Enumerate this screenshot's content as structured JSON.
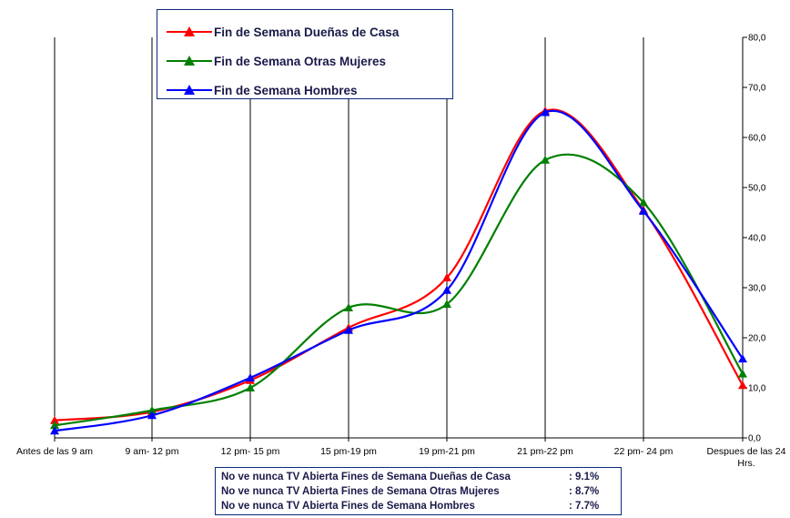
{
  "chart_data": {
    "type": "line",
    "categories": [
      "Antes de las 9 am",
      "9 am- 12 pm",
      "12 pm- 15 pm",
      "15 pm-19 pm",
      "19 pm-21 pm",
      "21 pm-22 pm",
      "22 pm- 24 pm",
      "Despues de las 24 Hrs."
    ],
    "series": [
      {
        "name": "Fin de Semana Dueñas de Casa",
        "color": "#ff0000",
        "values": [
          3.5,
          5.2,
          11.5,
          22.0,
          32.0,
          65.3,
          45.5,
          10.5
        ]
      },
      {
        "name": "Fin de Semana Otras Mujeres",
        "color": "#008000",
        "values": [
          2.5,
          5.5,
          10.0,
          26.0,
          26.7,
          55.5,
          47.0,
          12.8
        ]
      },
      {
        "name": "Fin de Semana Hombres",
        "color": "#0000ff",
        "values": [
          1.4,
          4.5,
          12.0,
          21.5,
          29.5,
          65.0,
          45.3,
          15.8
        ]
      }
    ],
    "ylim": [
      0,
      80
    ],
    "yticks": [
      "0,0",
      "10,0",
      "20,0",
      "30,0",
      "40,0",
      "50,0",
      "60,0",
      "70,0",
      "80,0"
    ],
    "y_axis_side": "right",
    "grid": "vertical lines at categories",
    "legend_position": "top-left",
    "title": "",
    "xlabel": "",
    "ylabel": ""
  },
  "legend": {
    "items": [
      {
        "label": "Fin de Semana Dueñas de Casa",
        "color": "#ff0000"
      },
      {
        "label": "Fin de Semana Otras Mujeres",
        "color": "#008000"
      },
      {
        "label": "Fin de Semana Hombres",
        "color": "#0000ff"
      }
    ]
  },
  "notes": [
    {
      "text": "No ve nunca TV Abierta Fines de Semana Dueñas de Casa",
      "value": ": 9.1%"
    },
    {
      "text": "No ve nunca TV Abierta Fines de Semana Otras Mujeres",
      "value": ": 8.7%"
    },
    {
      "text": "No ve nunca TV Abierta Fines de Semana Hombres",
      "value": ": 7.7%"
    }
  ]
}
